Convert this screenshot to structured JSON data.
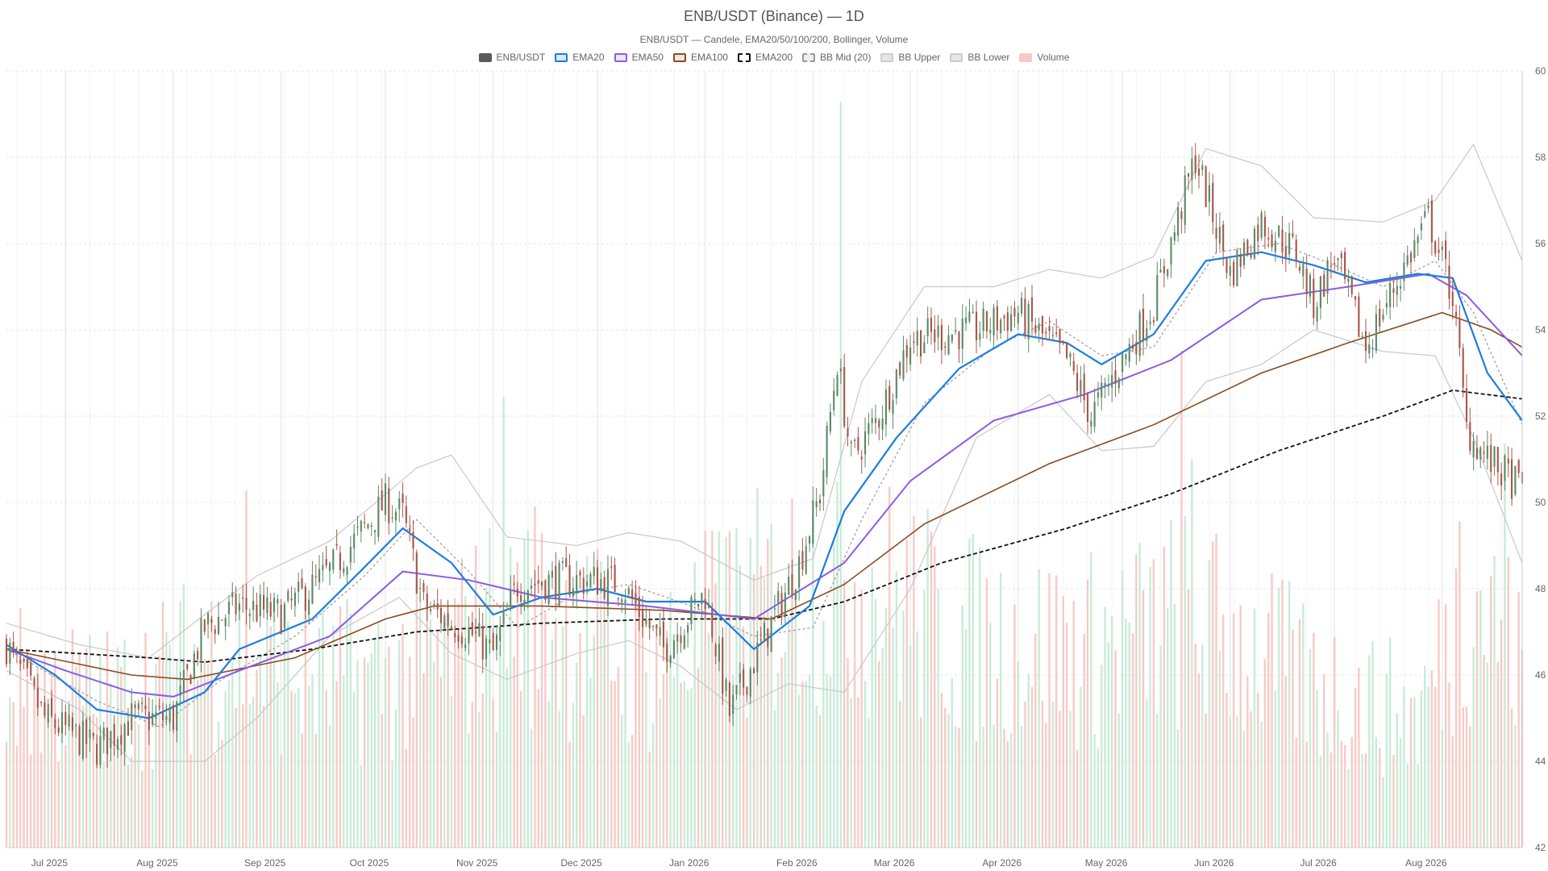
{
  "chart_data": {
    "type": "candlestick",
    "title": "ENB/USDT (Binance) — 1D",
    "subtitle": "ENB/USDT — Candele, EMA20/50/100/200, Bollinger, Volume",
    "ylim": [
      42,
      60
    ],
    "y_ticks": [
      42,
      44,
      46,
      48,
      50,
      52,
      54,
      56,
      58,
      60
    ],
    "x_range": [
      "2025-06-14",
      "2026-08-24"
    ],
    "x_ticks": [
      {
        "date": "2025-07-01",
        "label": "Jul 2025"
      },
      {
        "date": "2025-08-01",
        "label": "Aug 2025"
      },
      {
        "date": "2025-09-01",
        "label": "Sep 2025"
      },
      {
        "date": "2025-10-01",
        "label": "Oct 2025"
      },
      {
        "date": "2025-11-01",
        "label": "Nov 2025"
      },
      {
        "date": "2025-12-01",
        "label": "Dec 2025"
      },
      {
        "date": "2026-01-01",
        "label": "Jan 2026"
      },
      {
        "date": "2026-02-01",
        "label": "Feb 2026"
      },
      {
        "date": "2026-03-01",
        "label": "Mar 2026"
      },
      {
        "date": "2026-04-01",
        "label": "Apr 2026"
      },
      {
        "date": "2026-05-01",
        "label": "May 2026"
      },
      {
        "date": "2026-06-01",
        "label": "Jun 2026"
      },
      {
        "date": "2026-07-01",
        "label": "Jul 2026"
      },
      {
        "date": "2026-08-01",
        "label": "Aug 2026"
      }
    ],
    "grid": true,
    "legend_position": "top",
    "legend": [
      {
        "name": "ENB/USDT",
        "color": "#5a5a5a",
        "border": "#5a5a5a",
        "dash": false
      },
      {
        "name": "EMA20",
        "color": "#dbe8f7",
        "border": "#1a7ee0",
        "dash": false
      },
      {
        "name": "EMA50",
        "color": "#ece5fb",
        "border": "#8b5be6",
        "dash": false
      },
      {
        "name": "EMA100",
        "color": "#f2e6dc",
        "border": "#8b4a1f",
        "dash": false
      },
      {
        "name": "EMA200",
        "color": "#ffffff",
        "border": "#111111",
        "dash": true
      },
      {
        "name": "BB Mid (20)",
        "color": "#eeeeee",
        "border": "#999999",
        "dash": true
      },
      {
        "name": "BB Upper",
        "color": "#e6e6e6",
        "border": "#cccccc",
        "dash": false
      },
      {
        "name": "BB Lower",
        "color": "#e6e6e6",
        "border": "#cccccc",
        "dash": false
      },
      {
        "name": "Volume",
        "color": "#f7c9c4",
        "border": "#f7c9c4",
        "dash": false
      }
    ],
    "colors": {
      "up": "#5b8a67",
      "down": "#a8574a",
      "volume_up": "#bfe8d0",
      "volume_down": "#f6c1bb"
    },
    "price_path": [
      {
        "date": "2025-06-14",
        "close": 46.7
      },
      {
        "date": "2025-06-25",
        "close": 45.0
      },
      {
        "date": "2025-07-10",
        "close": 44.3
      },
      {
        "date": "2025-07-20",
        "close": 45.0
      },
      {
        "date": "2025-08-01",
        "close": 45.0
      },
      {
        "date": "2025-08-10",
        "close": 47.1
      },
      {
        "date": "2025-08-20",
        "close": 47.6
      },
      {
        "date": "2025-09-01",
        "close": 47.4
      },
      {
        "date": "2025-09-15",
        "close": 48.4
      },
      {
        "date": "2025-10-01",
        "close": 50.0
      },
      {
        "date": "2025-10-06",
        "close": 49.7
      },
      {
        "date": "2025-10-12",
        "close": 47.6
      },
      {
        "date": "2025-10-25",
        "close": 47.0
      },
      {
        "date": "2025-11-01",
        "close": 46.5
      },
      {
        "date": "2025-11-08",
        "close": 48.1
      },
      {
        "date": "2025-11-20",
        "close": 48.2
      },
      {
        "date": "2025-12-01",
        "close": 48.2
      },
      {
        "date": "2025-12-08",
        "close": 48.1
      },
      {
        "date": "2025-12-20",
        "close": 46.6
      },
      {
        "date": "2026-01-01",
        "close": 47.9
      },
      {
        "date": "2026-01-08",
        "close": 45.1
      },
      {
        "date": "2026-01-20",
        "close": 47.2
      },
      {
        "date": "2026-01-28",
        "close": 48.6
      },
      {
        "date": "2026-02-03",
        "close": 50.2
      },
      {
        "date": "2026-02-08",
        "close": 53.3
      },
      {
        "date": "2026-02-12",
        "close": 51.0
      },
      {
        "date": "2026-02-20",
        "close": 52.0
      },
      {
        "date": "2026-03-01",
        "close": 53.8
      },
      {
        "date": "2026-03-20",
        "close": 54.0
      },
      {
        "date": "2026-04-01",
        "close": 54.4
      },
      {
        "date": "2026-04-15",
        "close": 53.3
      },
      {
        "date": "2026-04-22",
        "close": 52.0
      },
      {
        "date": "2026-05-01",
        "close": 53.3
      },
      {
        "date": "2026-05-10",
        "close": 54.6
      },
      {
        "date": "2026-05-22",
        "close": 58.0
      },
      {
        "date": "2026-06-01",
        "close": 55.3
      },
      {
        "date": "2026-06-10",
        "close": 56.5
      },
      {
        "date": "2026-06-20",
        "close": 55.8
      },
      {
        "date": "2026-06-25",
        "close": 54.6
      },
      {
        "date": "2026-07-01",
        "close": 55.7
      },
      {
        "date": "2026-07-10",
        "close": 53.6
      },
      {
        "date": "2026-07-20",
        "close": 55.3
      },
      {
        "date": "2026-07-28",
        "close": 56.6
      },
      {
        "date": "2026-08-04",
        "close": 54.8
      },
      {
        "date": "2026-08-08",
        "close": 51.7
      },
      {
        "date": "2026-08-14",
        "close": 51.0
      },
      {
        "date": "2026-08-24",
        "close": 50.3
      }
    ],
    "ema20": [
      {
        "date": "2025-06-14",
        "value": 46.7
      },
      {
        "date": "2025-06-28",
        "value": 46.0
      },
      {
        "date": "2025-07-10",
        "value": 45.2
      },
      {
        "date": "2025-07-25",
        "value": 45.0
      },
      {
        "date": "2025-08-10",
        "value": 45.6
      },
      {
        "date": "2025-08-20",
        "value": 46.6
      },
      {
        "date": "2025-09-10",
        "value": 47.3
      },
      {
        "date": "2025-09-25",
        "value": 48.5
      },
      {
        "date": "2025-10-06",
        "value": 49.4
      },
      {
        "date": "2025-10-20",
        "value": 48.6
      },
      {
        "date": "2025-11-01",
        "value": 47.4
      },
      {
        "date": "2025-11-15",
        "value": 47.8
      },
      {
        "date": "2025-12-01",
        "value": 48.0
      },
      {
        "date": "2025-12-15",
        "value": 47.7
      },
      {
        "date": "2026-01-01",
        "value": 47.7
      },
      {
        "date": "2026-01-15",
        "value": 46.6
      },
      {
        "date": "2026-01-31",
        "value": 47.6
      },
      {
        "date": "2026-02-10",
        "value": 49.8
      },
      {
        "date": "2026-02-25",
        "value": 51.5
      },
      {
        "date": "2026-03-15",
        "value": 53.1
      },
      {
        "date": "2026-04-01",
        "value": 53.9
      },
      {
        "date": "2026-04-15",
        "value": 53.7
      },
      {
        "date": "2026-04-25",
        "value": 53.2
      },
      {
        "date": "2026-05-10",
        "value": 53.9
      },
      {
        "date": "2026-05-25",
        "value": 55.6
      },
      {
        "date": "2026-06-10",
        "value": 55.8
      },
      {
        "date": "2026-06-25",
        "value": 55.5
      },
      {
        "date": "2026-07-10",
        "value": 55.1
      },
      {
        "date": "2026-07-25",
        "value": 55.3
      },
      {
        "date": "2026-08-04",
        "value": 55.2
      },
      {
        "date": "2026-08-14",
        "value": 53.0
      },
      {
        "date": "2026-08-24",
        "value": 51.9
      }
    ],
    "ema50": [
      {
        "date": "2025-06-14",
        "value": 46.6
      },
      {
        "date": "2025-07-01",
        "value": 46.1
      },
      {
        "date": "2025-07-20",
        "value": 45.6
      },
      {
        "date": "2025-08-01",
        "value": 45.5
      },
      {
        "date": "2025-08-20",
        "value": 46.1
      },
      {
        "date": "2025-09-15",
        "value": 46.9
      },
      {
        "date": "2025-10-06",
        "value": 48.4
      },
      {
        "date": "2025-10-25",
        "value": 48.2
      },
      {
        "date": "2025-11-15",
        "value": 47.8
      },
      {
        "date": "2025-12-15",
        "value": 47.6
      },
      {
        "date": "2026-01-15",
        "value": 47.3
      },
      {
        "date": "2026-02-10",
        "value": 48.6
      },
      {
        "date": "2026-03-01",
        "value": 50.5
      },
      {
        "date": "2026-03-25",
        "value": 51.9
      },
      {
        "date": "2026-04-20",
        "value": 52.5
      },
      {
        "date": "2026-05-15",
        "value": 53.3
      },
      {
        "date": "2026-06-10",
        "value": 54.7
      },
      {
        "date": "2026-07-05",
        "value": 55.0
      },
      {
        "date": "2026-07-28",
        "value": 55.3
      },
      {
        "date": "2026-08-08",
        "value": 54.8
      },
      {
        "date": "2026-08-24",
        "value": 53.4
      }
    ],
    "ema100": [
      {
        "date": "2025-06-14",
        "value": 46.6
      },
      {
        "date": "2025-07-20",
        "value": 46.0
      },
      {
        "date": "2025-08-05",
        "value": 45.9
      },
      {
        "date": "2025-09-05",
        "value": 46.4
      },
      {
        "date": "2025-10-01",
        "value": 47.3
      },
      {
        "date": "2025-10-15",
        "value": 47.6
      },
      {
        "date": "2025-11-15",
        "value": 47.6
      },
      {
        "date": "2025-12-20",
        "value": 47.5
      },
      {
        "date": "2026-01-20",
        "value": 47.3
      },
      {
        "date": "2026-02-10",
        "value": 48.1
      },
      {
        "date": "2026-03-05",
        "value": 49.5
      },
      {
        "date": "2026-04-10",
        "value": 50.9
      },
      {
        "date": "2026-05-10",
        "value": 51.8
      },
      {
        "date": "2026-06-10",
        "value": 53.0
      },
      {
        "date": "2026-07-05",
        "value": 53.7
      },
      {
        "date": "2026-08-01",
        "value": 54.4
      },
      {
        "date": "2026-08-15",
        "value": 54.0
      },
      {
        "date": "2026-08-24",
        "value": 53.6
      }
    ],
    "ema200": [
      {
        "date": "2025-06-14",
        "value": 46.6
      },
      {
        "date": "2025-07-25",
        "value": 46.4
      },
      {
        "date": "2025-08-10",
        "value": 46.3
      },
      {
        "date": "2025-09-10",
        "value": 46.6
      },
      {
        "date": "2025-10-10",
        "value": 47.0
      },
      {
        "date": "2025-11-15",
        "value": 47.2
      },
      {
        "date": "2025-12-20",
        "value": 47.3
      },
      {
        "date": "2026-01-20",
        "value": 47.3
      },
      {
        "date": "2026-02-10",
        "value": 47.7
      },
      {
        "date": "2026-03-10",
        "value": 48.6
      },
      {
        "date": "2026-04-15",
        "value": 49.4
      },
      {
        "date": "2026-05-15",
        "value": 50.2
      },
      {
        "date": "2026-06-15",
        "value": 51.2
      },
      {
        "date": "2026-07-15",
        "value": 52.0
      },
      {
        "date": "2026-08-04",
        "value": 52.6
      },
      {
        "date": "2026-08-24",
        "value": 52.4
      }
    ],
    "bb_mid": [
      {
        "date": "2025-06-14",
        "value": 46.6
      },
      {
        "date": "2025-07-10",
        "value": 45.4
      },
      {
        "date": "2025-07-28",
        "value": 44.8
      },
      {
        "date": "2025-08-15",
        "value": 45.9
      },
      {
        "date": "2025-09-05",
        "value": 46.9
      },
      {
        "date": "2025-09-25",
        "value": 48.3
      },
      {
        "date": "2025-10-10",
        "value": 49.6
      },
      {
        "date": "2025-10-25",
        "value": 48.4
      },
      {
        "date": "2025-11-08",
        "value": 47.1
      },
      {
        "date": "2025-11-25",
        "value": 47.9
      },
      {
        "date": "2025-12-10",
        "value": 48.1
      },
      {
        "date": "2025-12-28",
        "value": 47.6
      },
      {
        "date": "2026-01-15",
        "value": 46.9
      },
      {
        "date": "2026-02-01",
        "value": 47.1
      },
      {
        "date": "2026-02-15",
        "value": 49.6
      },
      {
        "date": "2026-03-05",
        "value": 52.3
      },
      {
        "date": "2026-03-25",
        "value": 53.6
      },
      {
        "date": "2026-04-10",
        "value": 54.2
      },
      {
        "date": "2026-04-25",
        "value": 53.4
      },
      {
        "date": "2026-05-10",
        "value": 53.6
      },
      {
        "date": "2026-05-28",
        "value": 55.8
      },
      {
        "date": "2026-06-15",
        "value": 56.0
      },
      {
        "date": "2026-07-01",
        "value": 55.5
      },
      {
        "date": "2026-07-15",
        "value": 55.0
      },
      {
        "date": "2026-07-30",
        "value": 55.6
      },
      {
        "date": "2026-08-10",
        "value": 54.4
      },
      {
        "date": "2026-08-24",
        "value": 51.8
      }
    ],
    "bb_upper": [
      {
        "date": "2025-06-14",
        "value": 47.2
      },
      {
        "date": "2025-07-05",
        "value": 46.7
      },
      {
        "date": "2025-07-25",
        "value": 46.4
      },
      {
        "date": "2025-08-10",
        "value": 47.4
      },
      {
        "date": "2025-08-25",
        "value": 48.3
      },
      {
        "date": "2025-09-15",
        "value": 49.1
      },
      {
        "date": "2025-10-10",
        "value": 50.8
      },
      {
        "date": "2025-10-20",
        "value": 51.1
      },
      {
        "date": "2025-11-05",
        "value": 49.2
      },
      {
        "date": "2025-11-25",
        "value": 49.0
      },
      {
        "date": "2025-12-10",
        "value": 49.3
      },
      {
        "date": "2025-12-25",
        "value": 49.1
      },
      {
        "date": "2026-01-15",
        "value": 48.2
      },
      {
        "date": "2026-02-01",
        "value": 48.7
      },
      {
        "date": "2026-02-15",
        "value": 52.8
      },
      {
        "date": "2026-03-05",
        "value": 55.0
      },
      {
        "date": "2026-03-25",
        "value": 55.0
      },
      {
        "date": "2026-04-10",
        "value": 55.4
      },
      {
        "date": "2026-04-25",
        "value": 55.2
      },
      {
        "date": "2026-05-10",
        "value": 55.7
      },
      {
        "date": "2026-05-25",
        "value": 58.2
      },
      {
        "date": "2026-06-10",
        "value": 57.8
      },
      {
        "date": "2026-06-25",
        "value": 56.6
      },
      {
        "date": "2026-07-15",
        "value": 56.5
      },
      {
        "date": "2026-07-30",
        "value": 57.0
      },
      {
        "date": "2026-08-10",
        "value": 58.3
      },
      {
        "date": "2026-08-24",
        "value": 55.6
      }
    ],
    "bb_lower": [
      {
        "date": "2025-06-14",
        "value": 46.1
      },
      {
        "date": "2025-07-05",
        "value": 45.2
      },
      {
        "date": "2025-07-20",
        "value": 44.0
      },
      {
        "date": "2025-08-10",
        "value": 44.0
      },
      {
        "date": "2025-08-25",
        "value": 45.0
      },
      {
        "date": "2025-09-15",
        "value": 46.9
      },
      {
        "date": "2025-10-05",
        "value": 47.8
      },
      {
        "date": "2025-10-20",
        "value": 46.5
      },
      {
        "date": "2025-11-05",
        "value": 45.9
      },
      {
        "date": "2025-11-25",
        "value": 46.5
      },
      {
        "date": "2025-12-10",
        "value": 46.8
      },
      {
        "date": "2025-12-25",
        "value": 46.2
      },
      {
        "date": "2026-01-10",
        "value": 45.2
      },
      {
        "date": "2026-01-25",
        "value": 45.8
      },
      {
        "date": "2026-02-10",
        "value": 45.6
      },
      {
        "date": "2026-03-01",
        "value": 48.0
      },
      {
        "date": "2026-03-20",
        "value": 51.5
      },
      {
        "date": "2026-04-10",
        "value": 52.5
      },
      {
        "date": "2026-04-25",
        "value": 51.2
      },
      {
        "date": "2026-05-10",
        "value": 51.3
      },
      {
        "date": "2026-05-25",
        "value": 52.8
      },
      {
        "date": "2026-06-10",
        "value": 53.2
      },
      {
        "date": "2026-06-25",
        "value": 54.0
      },
      {
        "date": "2026-07-15",
        "value": 53.5
      },
      {
        "date": "2026-07-30",
        "value": 53.4
      },
      {
        "date": "2026-08-10",
        "value": 51.5
      },
      {
        "date": "2026-08-24",
        "value": 48.6
      }
    ],
    "volume_scale_max": 100,
    "volume_path": [
      {
        "date": "2025-06-14",
        "level": 20
      },
      {
        "date": "2025-07-15",
        "level": 18
      },
      {
        "date": "2025-08-15",
        "level": 24
      },
      {
        "date": "2025-09-15",
        "level": 20
      },
      {
        "date": "2025-10-15",
        "level": 22
      },
      {
        "date": "2025-11-08",
        "level": 30
      },
      {
        "date": "2025-12-15",
        "level": 22
      },
      {
        "date": "2026-01-10",
        "level": 28
      },
      {
        "date": "2026-02-08",
        "level": 34
      },
      {
        "date": "2026-03-15",
        "level": 26
      },
      {
        "date": "2026-04-20",
        "level": 24
      },
      {
        "date": "2026-05-20",
        "level": 28
      },
      {
        "date": "2026-06-25",
        "level": 20
      },
      {
        "date": "2026-07-25",
        "level": 16
      },
      {
        "date": "2026-08-10",
        "level": 32
      },
      {
        "date": "2026-08-24",
        "level": 22
      }
    ],
    "volume_spikes": [
      {
        "date": "2025-11-04",
        "level": 58
      },
      {
        "date": "2026-02-09",
        "level": 96
      },
      {
        "date": "2026-05-18",
        "level": 64
      },
      {
        "date": "2026-05-21",
        "level": 50
      },
      {
        "date": "2026-08-06",
        "level": 42
      },
      {
        "date": "2026-08-19",
        "level": 52
      },
      {
        "date": "2026-01-07",
        "level": 40
      },
      {
        "date": "2025-08-22",
        "level": 46
      }
    ]
  }
}
